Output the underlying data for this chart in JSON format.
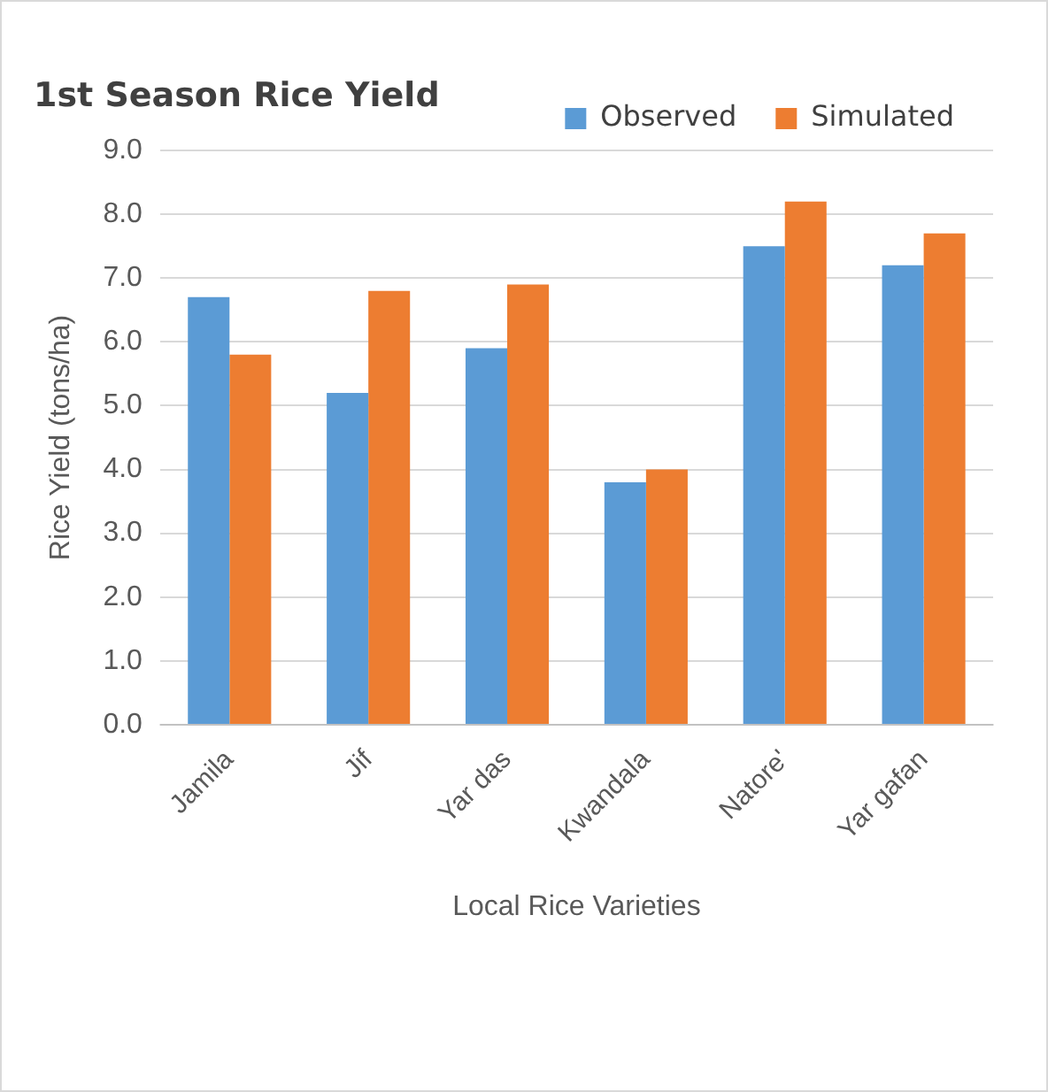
{
  "chart_data": {
    "type": "bar",
    "title": "1st Season Rice Yield",
    "xlabel": "Local Rice Varieties",
    "ylabel": "Rice Yield (tons/ha)",
    "categories": [
      "Jamila",
      "Jif",
      "Yar das",
      "Kwandala",
      "Natore'",
      "Yar gafan"
    ],
    "series": [
      {
        "name": "Observed",
        "color": "#5b9bd5",
        "values": [
          6.7,
          5.2,
          5.9,
          3.8,
          7.5,
          7.2
        ]
      },
      {
        "name": "Simulated",
        "color": "#ed7d31",
        "values": [
          5.8,
          6.8,
          6.9,
          4.0,
          8.2,
          7.7
        ]
      }
    ],
    "ylim": [
      0,
      9
    ],
    "yticks": [
      {
        "value": 0,
        "label": "0.0"
      },
      {
        "value": 1,
        "label": "1.0"
      },
      {
        "value": 2,
        "label": "2.0"
      },
      {
        "value": 3,
        "label": "3.0"
      },
      {
        "value": 4,
        "label": "4.0"
      },
      {
        "value": 5,
        "label": "5.0"
      },
      {
        "value": 6,
        "label": "6.0"
      },
      {
        "value": 7,
        "label": "7.0"
      },
      {
        "value": 8,
        "label": "8.0"
      },
      {
        "value": 9,
        "label": "9.0"
      }
    ],
    "grid": "y",
    "legend": "top right"
  }
}
